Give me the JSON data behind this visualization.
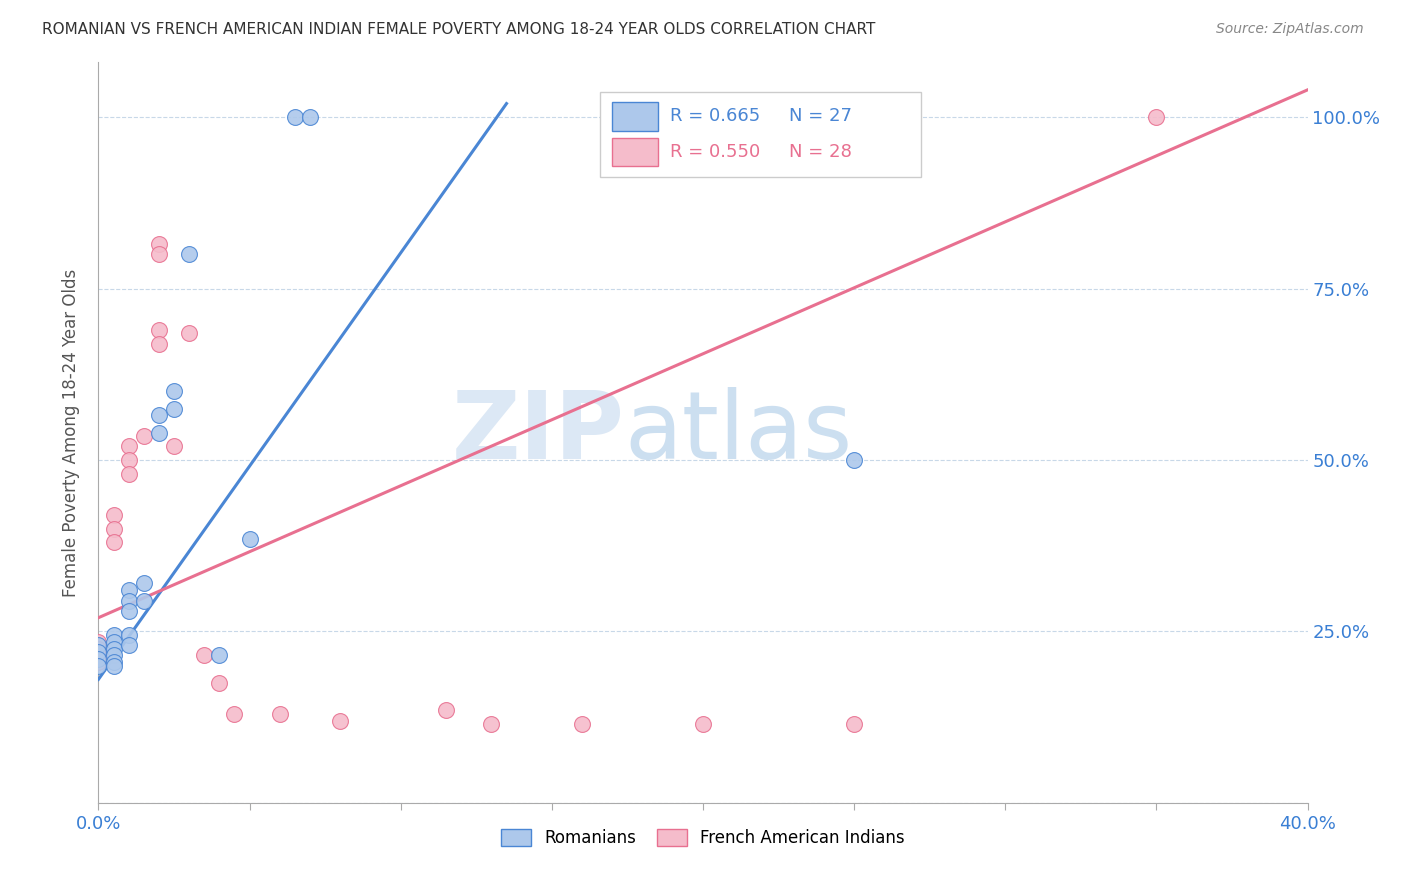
{
  "title": "ROMANIAN VS FRENCH AMERICAN INDIAN FEMALE POVERTY AMONG 18-24 YEAR OLDS CORRELATION CHART",
  "source": "Source: ZipAtlas.com",
  "ylabel": "Female Poverty Among 18-24 Year Olds",
  "xlim": [
    0.0,
    0.4
  ],
  "ylim": [
    0.0,
    1.08
  ],
  "xticks": [
    0.0,
    0.05,
    0.1,
    0.15,
    0.2,
    0.25,
    0.3,
    0.35,
    0.4
  ],
  "xticklabels": [
    "0.0%",
    "",
    "",
    "",
    "",
    "",
    "",
    "",
    "40.0%"
  ],
  "ytick_positions": [
    0.0,
    0.25,
    0.5,
    0.75,
    1.0
  ],
  "yticklabels": [
    "",
    "25.0%",
    "50.0%",
    "75.0%",
    "100.0%"
  ],
  "blue_R": 0.665,
  "blue_N": 27,
  "pink_R": 0.55,
  "pink_N": 28,
  "blue_color": "#adc8eb",
  "pink_color": "#f5bccb",
  "blue_line_color": "#4a86d4",
  "pink_line_color": "#e87090",
  "blue_line_x0": 0.0,
  "blue_line_y0": 0.18,
  "blue_line_x1": 0.135,
  "blue_line_y1": 1.02,
  "pink_line_x0": 0.0,
  "pink_line_y0": 0.27,
  "pink_line_x1": 0.4,
  "pink_line_y1": 1.04,
  "blue_dots": [
    [
      0.0,
      0.23
    ],
    [
      0.0,
      0.22
    ],
    [
      0.0,
      0.21
    ],
    [
      0.0,
      0.2
    ],
    [
      0.005,
      0.245
    ],
    [
      0.005,
      0.235
    ],
    [
      0.005,
      0.225
    ],
    [
      0.005,
      0.215
    ],
    [
      0.005,
      0.205
    ],
    [
      0.005,
      0.2
    ],
    [
      0.01,
      0.31
    ],
    [
      0.01,
      0.295
    ],
    [
      0.01,
      0.28
    ],
    [
      0.01,
      0.245
    ],
    [
      0.01,
      0.23
    ],
    [
      0.015,
      0.32
    ],
    [
      0.015,
      0.295
    ],
    [
      0.02,
      0.565
    ],
    [
      0.02,
      0.54
    ],
    [
      0.025,
      0.6
    ],
    [
      0.025,
      0.575
    ],
    [
      0.03,
      0.8
    ],
    [
      0.04,
      0.215
    ],
    [
      0.05,
      0.385
    ],
    [
      0.065,
      1.0
    ],
    [
      0.07,
      1.0
    ],
    [
      0.25,
      0.5
    ]
  ],
  "pink_dots": [
    [
      0.0,
      0.235
    ],
    [
      0.0,
      0.225
    ],
    [
      0.0,
      0.215
    ],
    [
      0.0,
      0.205
    ],
    [
      0.005,
      0.42
    ],
    [
      0.005,
      0.4
    ],
    [
      0.005,
      0.38
    ],
    [
      0.01,
      0.52
    ],
    [
      0.01,
      0.5
    ],
    [
      0.01,
      0.48
    ],
    [
      0.015,
      0.535
    ],
    [
      0.02,
      0.69
    ],
    [
      0.02,
      0.67
    ],
    [
      0.02,
      0.815
    ],
    [
      0.02,
      0.8
    ],
    [
      0.025,
      0.52
    ],
    [
      0.03,
      0.685
    ],
    [
      0.035,
      0.215
    ],
    [
      0.04,
      0.175
    ],
    [
      0.045,
      0.13
    ],
    [
      0.06,
      0.13
    ],
    [
      0.08,
      0.12
    ],
    [
      0.115,
      0.135
    ],
    [
      0.13,
      0.115
    ],
    [
      0.16,
      0.115
    ],
    [
      0.2,
      0.115
    ],
    [
      0.25,
      0.115
    ],
    [
      0.35,
      1.0
    ]
  ]
}
